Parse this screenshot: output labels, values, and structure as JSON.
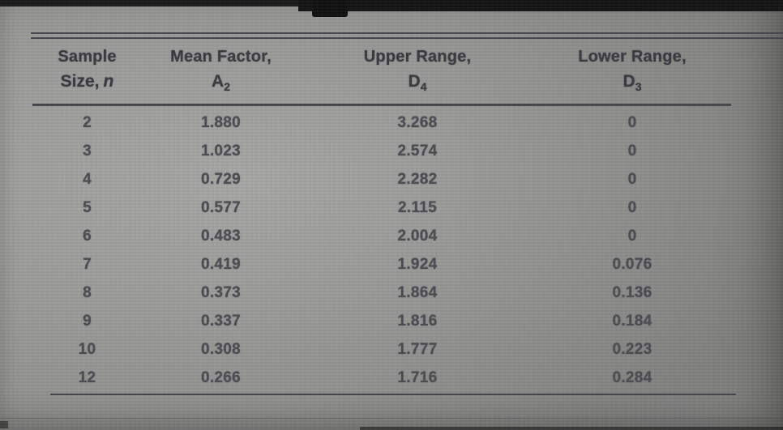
{
  "colors": {
    "background": "#9a9a98",
    "rule": "#45454b",
    "header_text": "#393940",
    "body_text": "#4b4b52",
    "screen_edge": "#1a1a1a"
  },
  "chart_data": {
    "type": "table",
    "title": "",
    "columns": [
      {
        "label_line1": "Sample",
        "label_line2": "Size,",
        "label_var": "n"
      },
      {
        "label_line1": "Mean Factor,",
        "symbol": "A",
        "subscript": "2"
      },
      {
        "label_line1": "Upper Range,",
        "symbol": "D",
        "subscript": "4"
      },
      {
        "label_line1": "Lower Range,",
        "symbol": "D",
        "subscript": "3"
      }
    ],
    "rows": [
      [
        "2",
        "1.880",
        "3.268",
        "0"
      ],
      [
        "3",
        "1.023",
        "2.574",
        "0"
      ],
      [
        "4",
        "0.729",
        "2.282",
        "0"
      ],
      [
        "5",
        "0.577",
        "2.115",
        "0"
      ],
      [
        "6",
        "0.483",
        "2.004",
        "0"
      ],
      [
        "7",
        "0.419",
        "1.924",
        "0.076"
      ],
      [
        "8",
        "0.373",
        "1.864",
        "0.136"
      ],
      [
        "9",
        "0.337",
        "1.816",
        "0.184"
      ],
      [
        "10",
        "0.308",
        "1.777",
        "0.223"
      ],
      [
        "12",
        "0.266",
        "1.716",
        "0.284"
      ]
    ]
  }
}
